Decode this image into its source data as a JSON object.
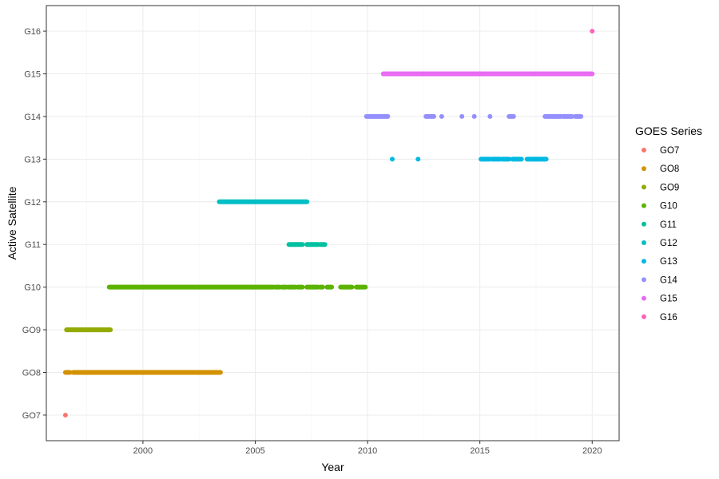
{
  "chart_data": {
    "type": "scatter",
    "xlabel": "Year",
    "ylabel": "Active Satellite",
    "xlim": [
      1995.7,
      2021.2
    ],
    "x_ticks": [
      2000,
      2005,
      2010,
      2015,
      2020
    ],
    "categories": [
      "GO7",
      "GO8",
      "GO9",
      "G10",
      "G11",
      "G12",
      "G13",
      "G14",
      "G15",
      "G16"
    ],
    "grid": true,
    "legend": {
      "title": "GOES Series",
      "position": "right"
    },
    "series": [
      {
        "name": "GO7",
        "color": "#F8766D",
        "segments": [],
        "points": [
          1996.55
        ]
      },
      {
        "name": "GO8",
        "color": "#D39200",
        "segments": [
          [
            1996.55,
            1996.75
          ],
          [
            1996.9,
            2003.45
          ]
        ],
        "points": []
      },
      {
        "name": "GO9",
        "color": "#93AA00",
        "segments": [
          [
            1996.6,
            1998.55
          ]
        ],
        "points": []
      },
      {
        "name": "G10",
        "color": "#5BB300",
        "segments": [
          [
            1998.5,
            2005.8
          ],
          [
            2005.9,
            2006.1
          ],
          [
            2006.2,
            2006.4
          ],
          [
            2006.5,
            2006.8
          ],
          [
            2006.9,
            2007.1
          ],
          [
            2007.3,
            2007.8
          ],
          [
            2007.9,
            2008.0
          ],
          [
            2008.2,
            2008.4
          ],
          [
            2008.8,
            2009.3
          ],
          [
            2009.5,
            2009.9
          ]
        ],
        "points": []
      },
      {
        "name": "G11",
        "color": "#00C19F",
        "segments": [
          [
            2006.5,
            2007.1
          ],
          [
            2007.3,
            2007.8
          ],
          [
            2007.9,
            2008.1
          ]
        ],
        "points": []
      },
      {
        "name": "G12",
        "color": "#00BFC4",
        "segments": [
          [
            2003.4,
            2007.3
          ]
        ],
        "points": []
      },
      {
        "name": "G13",
        "color": "#00B9E3",
        "segments": [
          [
            2015.05,
            2015.45
          ],
          [
            2015.55,
            2015.9
          ],
          [
            2016.0,
            2016.3
          ],
          [
            2016.45,
            2016.85
          ],
          [
            2017.1,
            2017.95
          ]
        ],
        "points": [
          2011.1,
          2012.25
        ]
      },
      {
        "name": "G14",
        "color": "#9590FF",
        "segments": [
          [
            2009.95,
            2010.9
          ],
          [
            2012.6,
            2012.95
          ],
          [
            2016.3,
            2016.5
          ],
          [
            2017.9,
            2018.6
          ],
          [
            2018.7,
            2019.1
          ],
          [
            2019.25,
            2019.5
          ]
        ],
        "points": [
          2013.3,
          2014.2,
          2014.75,
          2015.45
        ]
      },
      {
        "name": "G15",
        "color": "#E76BF3",
        "segments": [
          [
            2010.7,
            2020.0
          ]
        ],
        "points": []
      },
      {
        "name": "G16",
        "color": "#FF62BC",
        "segments": [],
        "points": [
          2020.0
        ]
      }
    ]
  }
}
